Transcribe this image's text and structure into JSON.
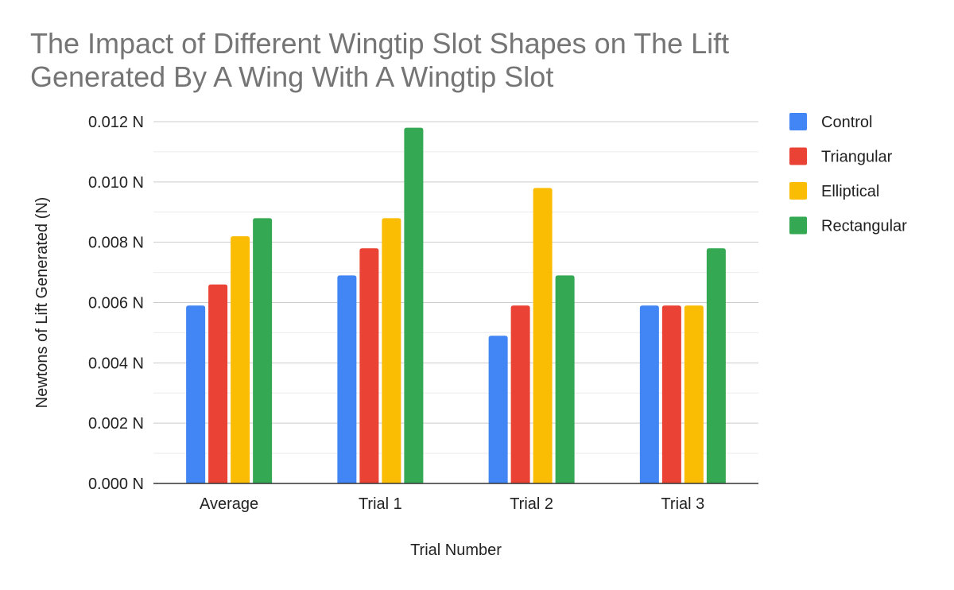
{
  "chart_data": {
    "type": "bar",
    "title_lines": [
      "The Impact of Different Wingtip Slot Shapes on The Lift",
      "Generated By A Wing With A Wingtip Slot"
    ],
    "xlabel": "Trial Number",
    "ylabel": "Newtons of Lift Generated (N)",
    "categories": [
      "Average",
      "Trial 1",
      "Trial 2",
      "Trial 3"
    ],
    "ylim": [
      0,
      0.012
    ],
    "y_ticks": [
      0,
      0.002,
      0.004,
      0.006,
      0.008,
      0.01,
      0.012
    ],
    "y_tick_labels": [
      "0.000 N",
      "0.002 N",
      "0.004 N",
      "0.006 N",
      "0.008 N",
      "0.010 N",
      "0.012 N"
    ],
    "grid": true,
    "legend_position": "right",
    "series": [
      {
        "name": "Control",
        "color": "#4285f4",
        "values": [
          0.0059,
          0.0069,
          0.0049,
          0.0059
        ]
      },
      {
        "name": "Triangular",
        "color": "#ea4335",
        "values": [
          0.0066,
          0.0078,
          0.0059,
          0.0059
        ]
      },
      {
        "name": "Elliptical",
        "color": "#fbbc04",
        "values": [
          0.0082,
          0.0088,
          0.0098,
          0.0059
        ]
      },
      {
        "name": "Rectangular",
        "color": "#34a853",
        "values": [
          0.0088,
          0.0118,
          0.0069,
          0.0078
        ]
      }
    ]
  }
}
